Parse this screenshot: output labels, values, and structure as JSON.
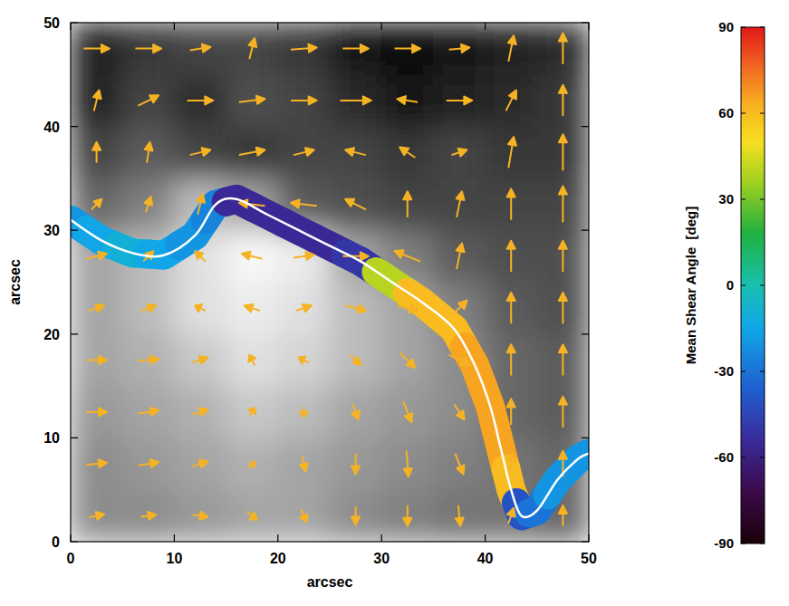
{
  "chart_data": {
    "type": "vector_field",
    "x_label": "arcsec",
    "y_label": "arcsec",
    "xlim": [
      0,
      50
    ],
    "ylim": [
      0,
      50
    ],
    "xticks": [
      0,
      10,
      20,
      30,
      40,
      50
    ],
    "yticks": [
      0,
      10,
      20,
      30,
      40,
      50
    ],
    "color": "#f5b324",
    "background": {
      "range": [
        -1,
        1
      ],
      "cells": [
        [
          0.1,
          0.1,
          0.2,
          0.3,
          0.3,
          0.1,
          0,
          -0.1,
          -0.1,
          -0.2
        ],
        [
          0.1,
          0.2,
          0.3,
          0.4,
          0.3,
          0.2,
          0.1,
          0,
          -0.1,
          -0.2
        ],
        [
          0.2,
          0.3,
          0.4,
          0.6,
          0.5,
          0.3,
          0.2,
          0.1,
          -0.2,
          -0.3
        ],
        [
          0.3,
          0.4,
          0.6,
          0.8,
          0.7,
          0.5,
          0.3,
          0.1,
          -0.2,
          -0.3
        ],
        [
          0.3,
          0.5,
          0.8,
          0.9,
          0.8,
          0.5,
          0.3,
          0,
          -0.3,
          -0.4
        ],
        [
          0.3,
          0.5,
          0.8,
          1,
          0.9,
          0.3,
          0,
          -0.3,
          -0.4,
          -0.4
        ],
        [
          -0.2,
          0,
          0.5,
          0.3,
          -0.3,
          -0.4,
          -0.5,
          -0.5,
          -0.5,
          -0.5
        ],
        [
          -0.5,
          -0.3,
          -0.5,
          -0.6,
          -0.5,
          -0.5,
          -0.6,
          -0.5,
          -0.6,
          -0.6
        ],
        [
          -0.8,
          -0.5,
          -0.7,
          -0.4,
          -0.5,
          -0.7,
          -0.9,
          -0.8,
          -0.7,
          -0.6
        ],
        [
          -0.8,
          -0.6,
          -0.5,
          -0.5,
          -0.6,
          -0.9,
          -1,
          -0.9,
          -0.8,
          -0.7
        ]
      ]
    },
    "vectors": {
      "x": [
        2.5,
        7.5,
        12.5,
        17.5,
        22.5,
        27.5,
        32.5,
        37.5,
        42.5,
        47.5,
        2.5,
        7.5,
        12.5,
        17.5,
        22.5,
        27.5,
        32.5,
        37.5,
        42.5,
        47.5,
        2.5,
        7.5,
        12.5,
        17.5,
        22.5,
        27.5,
        32.5,
        37.5,
        42.5,
        47.5,
        2.5,
        7.5,
        12.5,
        17.5,
        22.5,
        27.5,
        32.5,
        37.5,
        42.5,
        47.5,
        2.5,
        7.5,
        12.5,
        17.5,
        22.5,
        27.5,
        32.5,
        37.5,
        42.5,
        47.5,
        2.5,
        7.5,
        12.5,
        17.5,
        22.5,
        27.5,
        32.5,
        37.5,
        42.5,
        47.5,
        2.5,
        7.5,
        12.5,
        17.5,
        22.5,
        27.5,
        32.5,
        37.5,
        42.5,
        47.5,
        2.5,
        7.5,
        12.5,
        17.5,
        22.5,
        27.5,
        32.5,
        37.5,
        42.5,
        47.5,
        2.5,
        7.5,
        12.5,
        17.5,
        22.5,
        27.5,
        32.5,
        37.5,
        42.5,
        47.5,
        2.5,
        7.5,
        12.5,
        17.5,
        22.5,
        27.5,
        32.5,
        37.5,
        42.5,
        47.5
      ],
      "y": [
        2.5,
        2.5,
        2.5,
        2.5,
        2.5,
        2.5,
        2.5,
        2.5,
        2.5,
        2.5,
        7.5,
        7.5,
        7.5,
        7.5,
        7.5,
        7.5,
        7.5,
        7.5,
        7.5,
        7.5,
        12.5,
        12.5,
        12.5,
        12.5,
        12.5,
        12.5,
        12.5,
        12.5,
        12.5,
        12.5,
        17.5,
        17.5,
        17.5,
        17.5,
        17.5,
        17.5,
        17.5,
        17.5,
        17.5,
        17.5,
        22.5,
        22.5,
        22.5,
        22.5,
        22.5,
        22.5,
        22.5,
        22.5,
        22.5,
        22.5,
        27.5,
        27.5,
        27.5,
        27.5,
        27.5,
        27.5,
        27.5,
        27.5,
        27.5,
        27.5,
        32.5,
        32.5,
        32.5,
        32.5,
        32.5,
        32.5,
        32.5,
        32.5,
        32.5,
        32.5,
        37.5,
        37.5,
        37.5,
        37.5,
        37.5,
        37.5,
        37.5,
        37.5,
        37.5,
        37.5,
        42.5,
        42.5,
        42.5,
        42.5,
        42.5,
        42.5,
        42.5,
        42.5,
        42.5,
        42.5,
        47.5,
        47.5,
        47.5,
        47.5,
        47.5,
        47.5,
        47.5,
        47.5,
        47.5,
        47.5
      ],
      "u": [
        1.5,
        1.5,
        1.5,
        1,
        0.5,
        0,
        0,
        0.2,
        0.5,
        0,
        2,
        2,
        1.5,
        0.5,
        0.3,
        0,
        0.2,
        0.8,
        0.3,
        0,
        2,
        2,
        1.5,
        0.5,
        0,
        0.5,
        0.8,
        1,
        0,
        0,
        2,
        2,
        1.5,
        -0.5,
        -1,
        1,
        1.5,
        2,
        0,
        0,
        1.5,
        1.5,
        -1,
        -1.5,
        1.5,
        2,
        2,
        1.5,
        0,
        0,
        2,
        1,
        -1,
        -2,
        2,
        2.5,
        -2.5,
        0.5,
        0,
        0,
        1,
        0.5,
        0.5,
        -2.5,
        -2.5,
        -2,
        0,
        0.5,
        0,
        0,
        0,
        0.3,
        2,
        2.5,
        2,
        -2,
        -1.5,
        1.5,
        0.5,
        0,
        0.5,
        2,
        2.5,
        2.5,
        2.5,
        3,
        -2,
        2.5,
        1,
        0,
        2.5,
        2.5,
        2,
        0.5,
        2.5,
        2.5,
        2.5,
        2,
        0.5,
        0
      ],
      "v": [
        0.3,
        0.2,
        -0.2,
        -0.8,
        -1.2,
        -1.8,
        -2,
        -2,
        1.5,
        2,
        0.2,
        0.3,
        0.5,
        -0.5,
        -1.5,
        -2,
        -2.5,
        -2,
        2,
        2.5,
        0,
        0.3,
        0.5,
        0.8,
        -1,
        -1.5,
        -2,
        -1.5,
        2.5,
        3,
        0,
        0.2,
        0.5,
        1,
        0.5,
        -1,
        -1.5,
        -1,
        3,
        3,
        0.5,
        0.5,
        0.5,
        0.5,
        0.5,
        -0.5,
        -0.5,
        1.5,
        3,
        3,
        0.5,
        1,
        1,
        0.5,
        0.3,
        0,
        1,
        2.5,
        3,
        3,
        1,
        1.5,
        2,
        0.3,
        0.3,
        1,
        2.5,
        2.5,
        3,
        3.5,
        2,
        2,
        0.5,
        0.5,
        0.5,
        0.5,
        1,
        0.5,
        3,
        3.5,
        2,
        1,
        0,
        0.3,
        0,
        0,
        0.3,
        0,
        2,
        3,
        0,
        0,
        0.3,
        2,
        0.2,
        0,
        0,
        0.2,
        2.5,
        3
      ]
    },
    "inversion_line": {
      "color": "#ffffff",
      "x": [
        0,
        3,
        6,
        9,
        12,
        14,
        16,
        19,
        22,
        25,
        28,
        31,
        34,
        37,
        39,
        40.5,
        41.5,
        42.5,
        43.5,
        45,
        47,
        49,
        50
      ],
      "y": [
        31,
        29,
        27.8,
        27.6,
        29.5,
        32.5,
        33,
        31.5,
        30,
        28.5,
        27,
        25,
        23,
        20.5,
        17,
        13,
        9,
        5,
        2.5,
        3,
        6,
        8,
        8.5
      ],
      "shear": [
        -20,
        -15,
        -10,
        -15,
        -20,
        -25,
        -55,
        -55,
        -55,
        -55,
        -50,
        40,
        60,
        60,
        65,
        65,
        65,
        60,
        -40,
        -30,
        -20,
        -20,
        -20
      ]
    },
    "colorbar": {
      "label": "Mean Shear Angle  [deg]",
      "range": [
        -90,
        90
      ],
      "ticks": [
        -90,
        -60,
        -30,
        0,
        30,
        60,
        90
      ]
    }
  }
}
